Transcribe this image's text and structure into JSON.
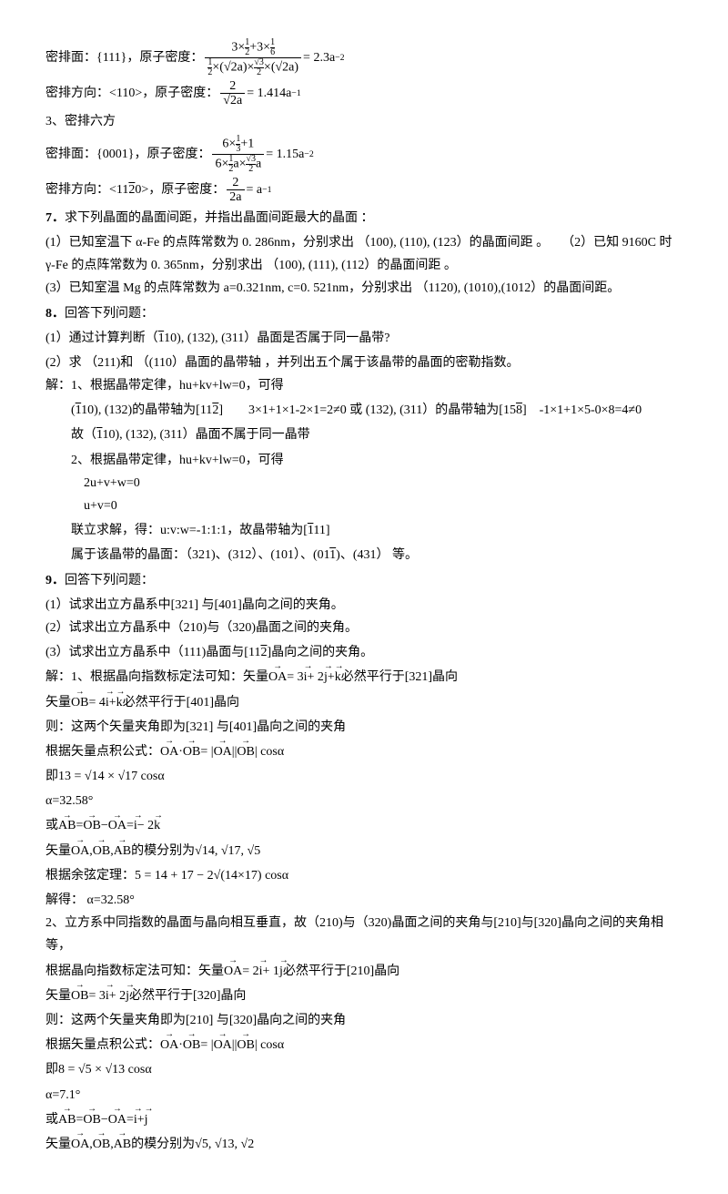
{
  "s1": {
    "t1": "密排面：{111}，原子密度：",
    "t1r": "= 2.3a",
    "t1e": "−2",
    "t2": "密排方向：<110>，原子密度：",
    "t2r": "= 1.414a",
    "t2e": "−1",
    "t3": "3、密排六方",
    "t4": "密排面：{0001}，原子密度：",
    "t4r": "= 1.15a",
    "t4e": "−2",
    "t5a": "密排方向：",
    "t5b": "< 1120 >",
    "t5c": "，原子密度：",
    "t5r": "= a",
    "t5e": "−1"
  },
  "q7": {
    "title": "7．",
    "titleText": "求下列晶面的晶面间距，并指出晶面间距最大的晶面 ：",
    "p1": "(1）已知室温下 α-Fe 的点阵常数为 0. 286nm，分别求出 （100), (110), (123）的晶面间距 。　　（2）已知 9160C 时 γ-Fe 的点阵常数为 0. 365nm，分别求出 （100), (111), (112）的晶面间距 。",
    "p3": "(3）已知室温 Mg 的点阵常数为 a=0.321nm, c=0. 521nm，分别求出 （1120), (1010),(1012）的晶面间距。"
  },
  "q8": {
    "title": "8．",
    "titleText": "回答下列问题：",
    "p1a": "(1）通过计算判断（",
    "p1b": "110",
    "p1c": "), (132), (311）晶面是否属于同一晶带?",
    "p2": "(2）求 （211)和 （(110）晶面的晶带轴 ，并列出五个属于该晶带的晶面的密勒指数。",
    "a0": "解：1、根据晶带定律，hu+kv+lw=0，可得",
    "a1a": "(",
    "a1b": "110",
    "a1c": "), (132)的晶带轴为",
    "a1d": "[112]",
    "a1e": "　　3×1+1×1-2×1=2≠0 或 (132), (311）的晶带轴为",
    "a1f": "[158]",
    "a1g": "　-1×1+1×5-0×8=4≠0",
    "a2a": "故（",
    "a2b": "110",
    "a2c": "), (132), (311）晶面不属于同一晶带",
    "a3": "2、根据晶带定律，hu+kv+lw=0，可得",
    "a4": "2u+v+w=0",
    "a5": "u+v=0",
    "a6a": "联立求解，得：u:v:w=-1:1:1，故晶带轴为",
    "a6b": "[111]",
    "a7a": "属于该晶带的晶面：（321)、(312）、(101）、",
    "a7b": "(011)",
    "a7c": "、(431） 等。"
  },
  "q9": {
    "title": "9．",
    "titleText": "回答下列问题：",
    "p1": "(1）试求出立方晶系中[321] 与[401]晶向之间的夹角。",
    "p2": "(2）试求出立方晶系中（210)与（320)晶面之间的夹角。",
    "p3a": "(3）试求出立方晶系中（111)晶面与",
    "p3b": "[112]",
    "p3c": "晶向之间的夹角。",
    "s1a": "解：1、根据晶向指数标定法可知：矢量",
    "s1b": "OA",
    "s1c": "= 3",
    "s1d": "i",
    "s1e": "+ 2",
    "s1f": "j",
    "s1g": "+",
    "s1h": "k",
    "s1i": " 必然平行于[321]晶向",
    "s2a": "矢量",
    "s2b": "OB",
    "s2c": "= 4",
    "s2d": "i",
    "s2e": "+",
    "s2f": "k",
    "s2g": " 必然平行于[401]晶向",
    "s3": "则：这两个矢量夹角即为[321] 与[401]晶向之间的夹角",
    "s4a": "根据矢量点积公式：",
    "s4b": "OA",
    "s4c": "·",
    "s4d": "OB",
    "s4e": " = |",
    "s4f": "OA",
    "s4g": "||",
    "s4h": "OB",
    "s4i": "| cosα",
    "s5a": "即",
    "s5b": "13 = √14 × √17 cosα",
    "s6": "α=32.58°",
    "s7a": "或",
    "s7b": "AB",
    "s7c": " = ",
    "s7d": "OB",
    "s7e": " − ",
    "s7f": "OA",
    "s7g": " = ",
    "s7h": "i",
    "s7i": " − 2",
    "s7j": "k",
    "s8a": "矢量",
    "s8b": "OA",
    "s8c": ",",
    "s8d": "OB",
    "s8e": ",",
    "s8f": "AB",
    "s8g": " 的模分别为",
    "s8h": "√14, √17, √5",
    "s9a": "根据余弦定理：",
    "s9b": "5 = 14 + 17 − 2√(14×17) cosα",
    "s10": "解得： α=32.58°",
    "t1": "2、立方系中同指数的晶面与晶向相互垂直，故（210)与（320)晶面之间的夹角与[210]与[320]晶向之间的夹角相等，",
    "t2a": "根据晶向指数标定法可知：矢量",
    "t2b": "OA",
    "t2c": " = 2",
    "t2d": "i",
    "t2e": " + 1",
    "t2f": "j",
    "t2g": " 必然平行于[210]晶向",
    "t3a": "矢量",
    "t3b": "OB",
    "t3c": " = 3",
    "t3d": "i",
    "t3e": " + 2",
    "t3f": "j",
    "t3g": " 必然平行于[320]晶向",
    "t4": "则：这两个矢量夹角即为[210] 与[320]晶向之间的夹角",
    "t5a": "根据矢量点积公式：",
    "t5b": "OA",
    "t5c": "·",
    "t5d": "OB",
    "t5e": " = |",
    "t5f": "OA",
    "t5g": "||",
    "t5h": "OB",
    "t5i": "| cosα",
    "t6a": "即",
    "t6b": " 8 = √5 × √13 cosα",
    "t7": "α=7.1°",
    "t8a": "或",
    "t8b": "AB",
    "t8c": " = ",
    "t8d": "OB",
    "t8e": " − ",
    "t8f": "OA",
    "t8g": " = ",
    "t8h": "i",
    "t8i": " + ",
    "t8j": "j",
    "t9a": "矢量",
    "t9b": "OA",
    "t9c": ",",
    "t9d": "OB",
    "t9e": ",",
    "t9f": "AB",
    "t9g": " 的模分别为",
    "t9h": "√5, √13, √2"
  }
}
